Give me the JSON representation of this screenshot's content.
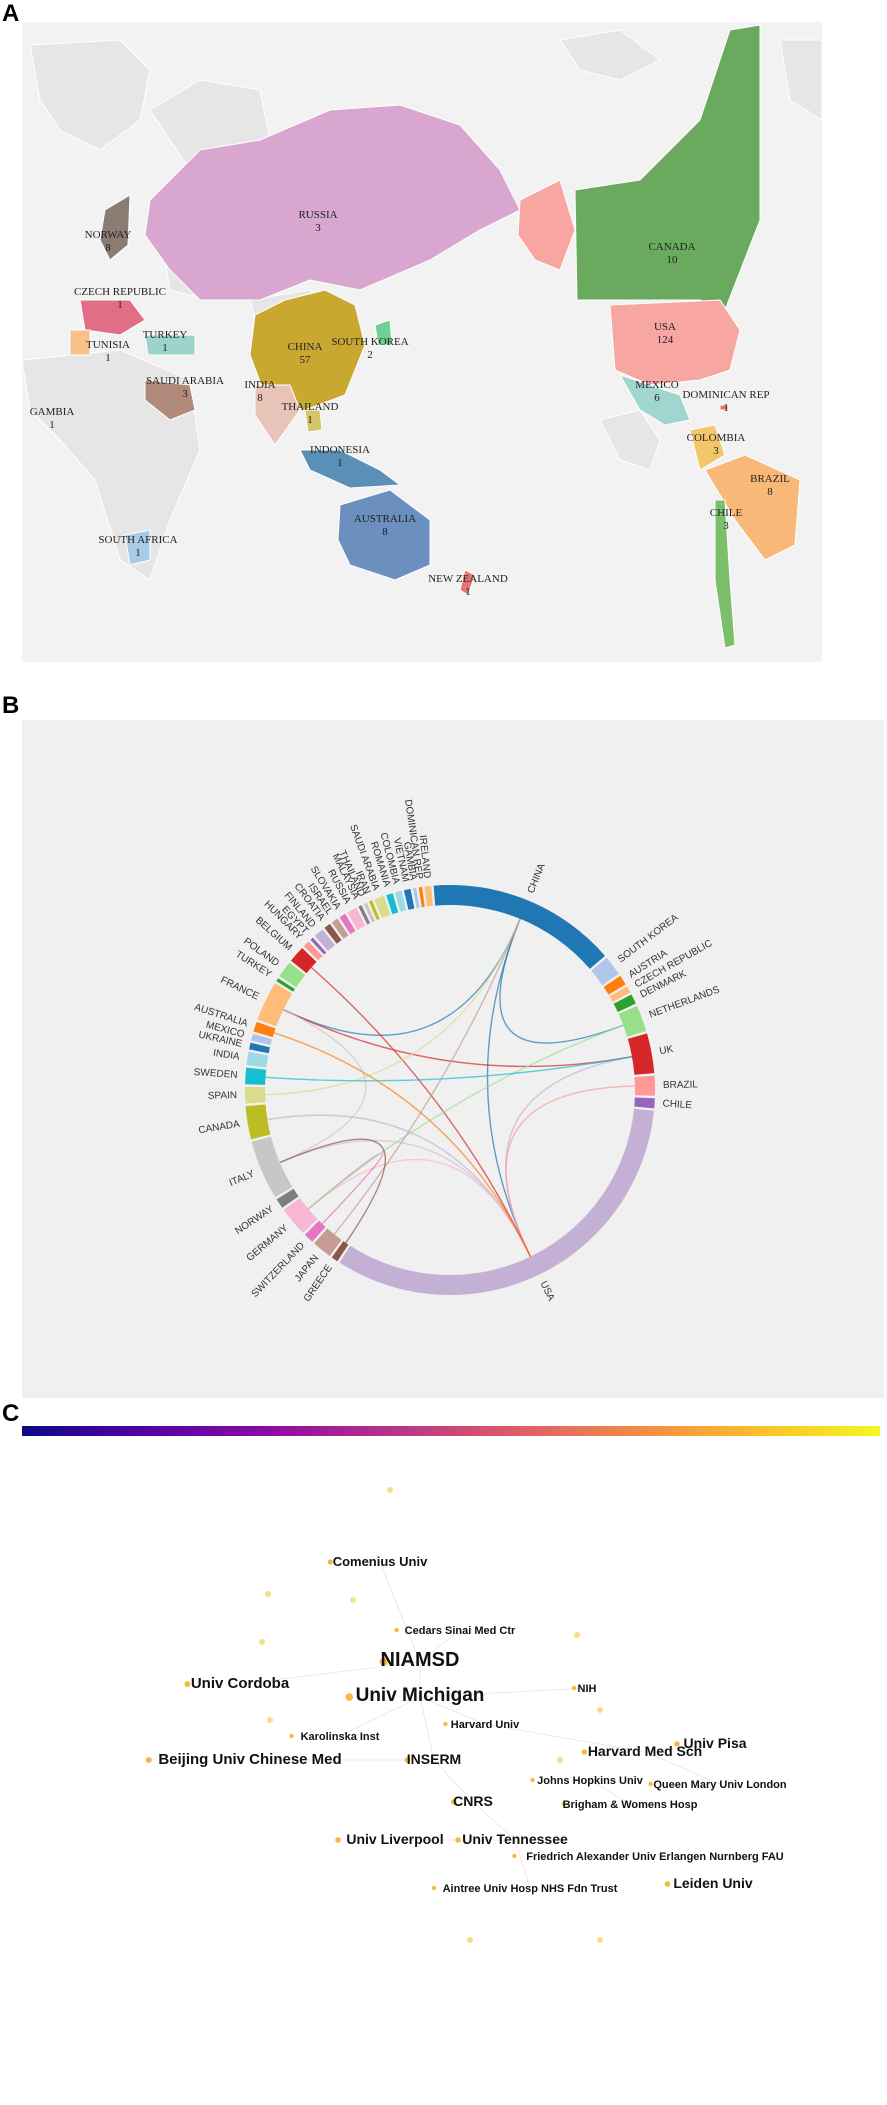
{
  "panels": {
    "a": "A",
    "b": "B",
    "c": "C"
  },
  "map": {
    "countries": [
      {
        "name": "RUSSIA",
        "value": "3",
        "color": "#d9a6cf"
      },
      {
        "name": "CANADA",
        "value": "10",
        "color": "#6aaa5e"
      },
      {
        "name": "USA",
        "value": "124",
        "color": "#f7a6a2"
      },
      {
        "name": "CHINA",
        "value": "57",
        "color": "#c9a832"
      },
      {
        "name": "NORWAY",
        "value": "8",
        "color": "#8a7b73"
      },
      {
        "name": "CZECH REPUBLIC",
        "value": "1",
        "color": "#e06e87"
      },
      {
        "name": "TURKEY",
        "value": "1",
        "color": "#9ad4cc"
      },
      {
        "name": "TUNISIA",
        "value": "1",
        "color": "#f6c28a"
      },
      {
        "name": "SAUDI ARABIA",
        "value": "3",
        "color": "#b08a7a"
      },
      {
        "name": "INDIA",
        "value": "8",
        "color": "#e8c4b8"
      },
      {
        "name": "SOUTH KOREA",
        "value": "2",
        "color": "#6fcf97"
      },
      {
        "name": "THAILAND",
        "value": "1",
        "color": "#d6c46a"
      },
      {
        "name": "GAMBIA",
        "value": "1",
        "color": "#cccccc"
      },
      {
        "name": "INDONESIA",
        "value": "1",
        "color": "#5a8fb8"
      },
      {
        "name": "AUSTRALIA",
        "value": "8",
        "color": "#6b8fbf"
      },
      {
        "name": "NEW ZEALAND",
        "value": "1",
        "color": "#e57373"
      },
      {
        "name": "SOUTH AFRICA",
        "value": "1",
        "color": "#a8cbe8"
      },
      {
        "name": "MEXICO",
        "value": "6",
        "color": "#a0d6cf"
      },
      {
        "name": "DOMINICAN REP",
        "value": "1",
        "color": "#e57373"
      },
      {
        "name": "COLOMBIA",
        "value": "3",
        "color": "#f3c66b"
      },
      {
        "name": "BRAZIL",
        "value": "8",
        "color": "#f8b878"
      },
      {
        "name": "CHILE",
        "value": "3",
        "color": "#7cbf6a"
      }
    ]
  },
  "chart_data": [
    {
      "type": "map",
      "regions": [
        "RUSSIA",
        "CANADA",
        "USA",
        "CHINA",
        "NORWAY",
        "CZECH REPUBLIC",
        "TURKEY",
        "TUNISIA",
        "SAUDI ARABIA",
        "INDIA",
        "SOUTH KOREA",
        "THAILAND",
        "GAMBIA",
        "INDONESIA",
        "AUSTRALIA",
        "NEW ZEALAND",
        "SOUTH AFRICA",
        "MEXICO",
        "DOMINICAN REP",
        "COLOMBIA",
        "BRAZIL",
        "CHILE"
      ],
      "values": [
        3,
        10,
        124,
        57,
        8,
        1,
        1,
        1,
        3,
        8,
        2,
        1,
        1,
        1,
        8,
        1,
        1,
        6,
        1,
        3,
        8,
        3
      ]
    },
    {
      "type": "chord",
      "categories": [
        "CHINA",
        "SOUTH KOREA",
        "AUSTRIA",
        "CZECH REPUBLIC",
        "DENMARK",
        "NETHERLANDS",
        "UK",
        "BRAZIL",
        "CHILE",
        "USA",
        "GREECE",
        "JAPAN",
        "SWITZERLAND",
        "GERMANY",
        "NORWAY",
        "ITALY",
        "CANADA",
        "SPAIN",
        "SWEDEN",
        "INDIA",
        "UKRAINE",
        "MEXICO",
        "AUSTRALIA",
        "FRANCE",
        "TURKEY",
        "POLAND",
        "BELGIUM",
        "HUNGARY",
        "EGYPT",
        "FINLAND",
        "CROATIA",
        "ISRAEL",
        "SLOVAKIA",
        "RUSSIA",
        "MALAYSIA",
        "THAILAND",
        "IRAN",
        "SAUDI ARABIA",
        "ROMANIA",
        "COLOMBIA",
        "VIETNAM",
        "GAMBIA",
        "DOMINICAN REP",
        "IRELAND"
      ],
      "values": [
        57,
        6,
        3,
        2,
        3,
        8,
        12,
        6,
        3,
        124,
        2,
        6,
        3,
        9,
        3,
        18,
        10,
        5,
        5,
        4,
        2,
        2,
        3,
        12,
        1,
        5,
        5,
        2,
        1,
        3,
        2,
        2,
        2,
        3,
        1,
        1,
        1,
        3,
        2,
        2,
        2,
        1,
        1,
        2
      ],
      "colors": [
        "#1f77b4",
        "#aec7e8",
        "#ff7f0e",
        "#ffbb78",
        "#2ca02c",
        "#98df8a",
        "#d62728",
        "#ff9896",
        "#9467bd",
        "#c5b0d5",
        "#8c564b",
        "#c49c94",
        "#e377c2",
        "#f7b6d2",
        "#7f7f7f",
        "#c7c7c7",
        "#bcbd22",
        "#dbdb8d",
        "#17becf",
        "#9edae5",
        "#1f77b4",
        "#aec7e8",
        "#ff7f0e",
        "#ffbb78",
        "#2ca02c",
        "#98df8a",
        "#d62728",
        "#ff9896",
        "#9467bd",
        "#c5b0d5",
        "#8c564b",
        "#c49c94",
        "#e377c2",
        "#f7b6d2",
        "#7f7f7f",
        "#c7c7c7",
        "#bcbd22",
        "#dbdb8d",
        "#17becf",
        "#9edae5",
        "#1f77b4",
        "#aec7e8",
        "#ff7f0e",
        "#ffbb78"
      ]
    },
    {
      "type": "network",
      "colorbar": [
        "#0d0887",
        "#5302a3",
        "#8b0aa5",
        "#b83289",
        "#db5c68",
        "#f48849",
        "#febd2a",
        "#f0f921"
      ],
      "nodes": [
        "Comenius Univ",
        "Cedars Sinai Med Ctr",
        "NIAMSD",
        "Univ Cordoba",
        "Univ Michigan",
        "NIH",
        "Karolinska Inst",
        "Harvard Univ",
        "Beijing Univ Chinese Med",
        "INSERM",
        "Harvard Med Sch",
        "Univ Pisa",
        "Johns Hopkins Univ",
        "Queen Mary Univ London",
        "CNRS",
        "Brigham & Womens Hosp",
        "Univ Liverpool",
        "Univ Tennessee",
        "Friedrich Alexander Univ Erlangen Nurnberg FAU",
        "Aintree Univ Hosp NHS Fdn Trust",
        "Leiden Univ"
      ]
    }
  ]
}
